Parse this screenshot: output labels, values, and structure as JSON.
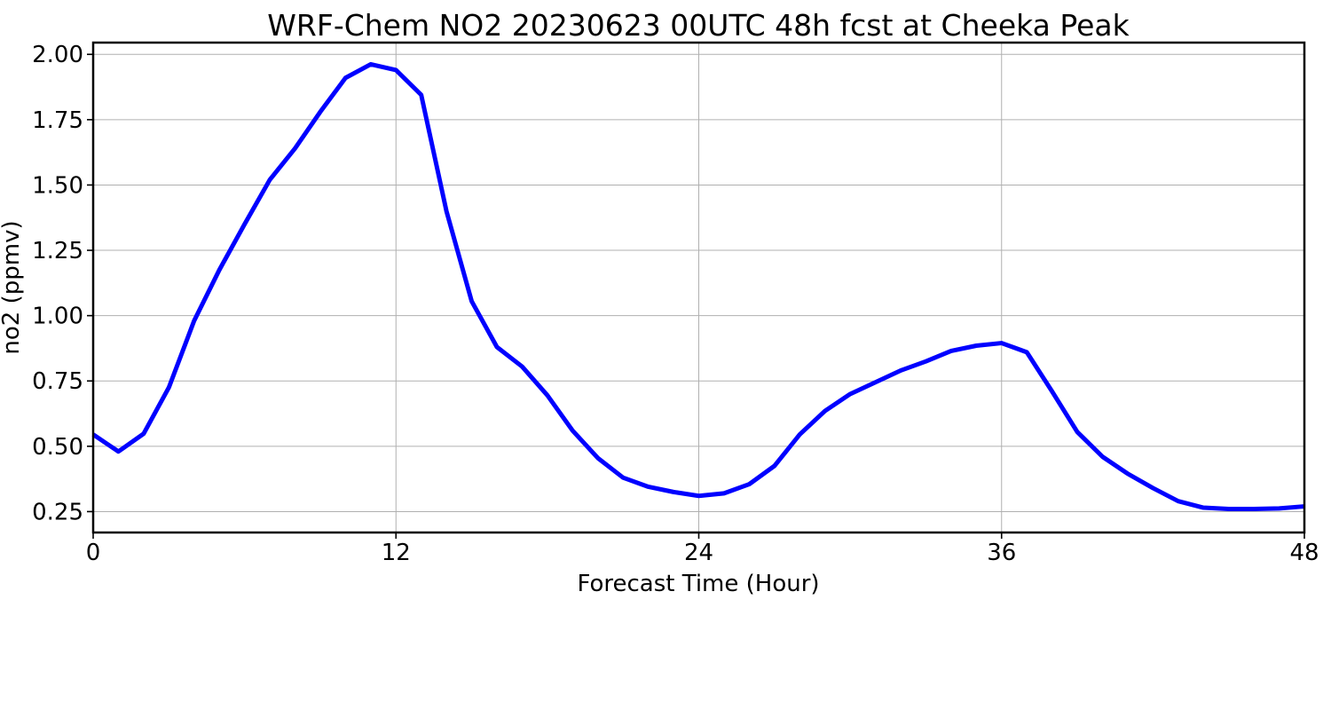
{
  "chart_data": {
    "type": "line",
    "title": "WRF-Chem NO2  20230623 00UTC 48h fcst at Cheeka Peak",
    "xlabel": "Forecast Time (Hour)",
    "ylabel": "no2  (ppmv)",
    "xlim": [
      0,
      48
    ],
    "ylim": [
      0.17,
      2.045
    ],
    "xticks": [
      0,
      12,
      24,
      36,
      48
    ],
    "xtick_labels": [
      "0",
      "12",
      "24",
      "36",
      "48"
    ],
    "yticks": [
      0.25,
      0.5,
      0.75,
      1.0,
      1.25,
      1.5,
      1.75,
      2.0
    ],
    "ytick_labels": [
      "0.25",
      "0.50",
      "0.75",
      "1.00",
      "1.25",
      "1.50",
      "1.75",
      "2.00"
    ],
    "grid": true,
    "series": [
      {
        "color": "#0000ff",
        "x": [
          0,
          1,
          2,
          3,
          4,
          5,
          6,
          7,
          8,
          9,
          10,
          11,
          12,
          13,
          14,
          15,
          16,
          17,
          18,
          19,
          20,
          21,
          22,
          23,
          24,
          25,
          26,
          27,
          28,
          29,
          30,
          31,
          32,
          33,
          34,
          35,
          36,
          37,
          38,
          39,
          40,
          41,
          42,
          43,
          44,
          45,
          46,
          47,
          48
        ],
        "values": [
          0.545,
          0.48,
          0.548,
          0.725,
          0.98,
          1.175,
          1.35,
          1.52,
          1.64,
          1.78,
          1.91,
          1.962,
          1.94,
          1.845,
          1.4,
          1.055,
          0.88,
          0.805,
          0.695,
          0.56,
          0.455,
          0.38,
          0.345,
          0.325,
          0.31,
          0.32,
          0.355,
          0.425,
          0.545,
          0.635,
          0.7,
          0.745,
          0.79,
          0.825,
          0.865,
          0.885,
          0.895,
          0.86,
          0.71,
          0.555,
          0.46,
          0.395,
          0.34,
          0.29,
          0.265,
          0.26,
          0.26,
          0.262,
          0.27
        ]
      }
    ]
  }
}
